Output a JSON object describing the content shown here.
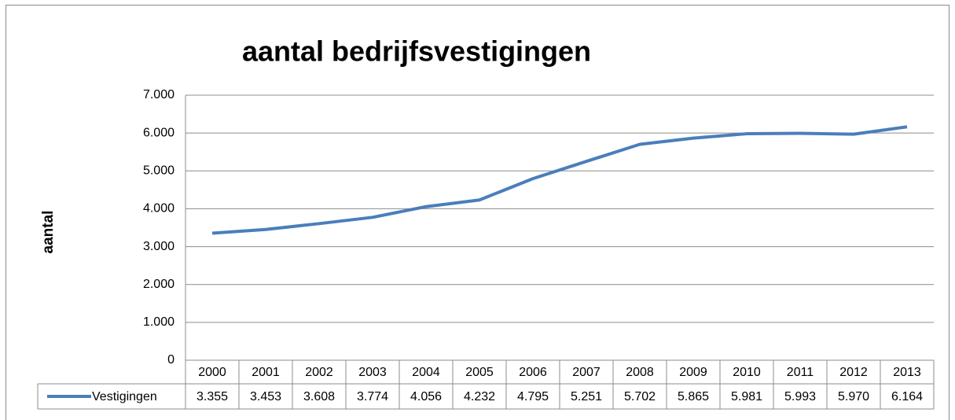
{
  "chart_data": {
    "type": "line",
    "title": "aantal bedrijfsvestigingen",
    "y_label": "aantal",
    "categories": [
      "2000",
      "2001",
      "2002",
      "2003",
      "2004",
      "2005",
      "2006",
      "2007",
      "2008",
      "2009",
      "2010",
      "2011",
      "2012",
      "2013"
    ],
    "series": [
      {
        "name": "Vestigingen",
        "color": "#4a7ebb",
        "values": [
          3355,
          3453,
          3608,
          3774,
          4056,
          4232,
          4795,
          5251,
          5702,
          5865,
          5981,
          5993,
          5970,
          6164
        ],
        "value_labels": [
          "3.355",
          "3.453",
          "3.608",
          "3.774",
          "4.056",
          "4.232",
          "4.795",
          "5.251",
          "5.702",
          "5.865",
          "5.981",
          "5.993",
          "5.970",
          "6.164"
        ]
      }
    ],
    "ylim": [
      0,
      7000
    ],
    "yticks": [
      0,
      {
        "value": 1000,
        "label": "1.000"
      },
      {
        "value": 2000,
        "label": "2.000"
      },
      {
        "value": 3000,
        "label": "3.000"
      },
      {
        "value": 4000,
        "label": "4.000"
      },
      {
        "value": 5000,
        "label": "5.000"
      },
      {
        "value": 6000,
        "label": "6.000"
      },
      {
        "value": 7000,
        "label": "7.000"
      }
    ],
    "grid": true,
    "data_table": true
  }
}
